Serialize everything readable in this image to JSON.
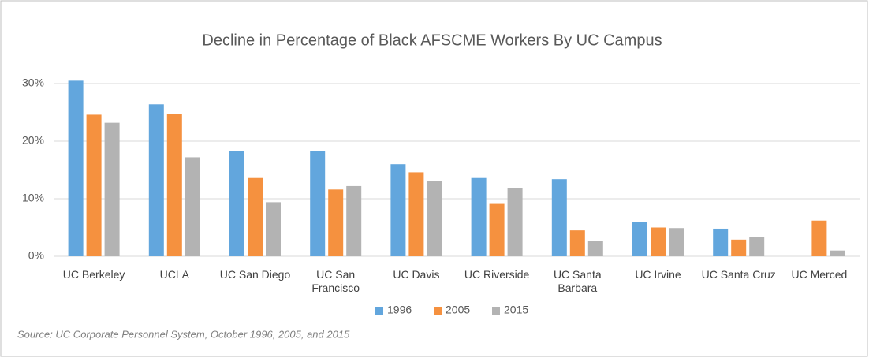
{
  "chart_data": {
    "type": "bar",
    "title": "Decline in Percentage of Black AFSCME Workers By UC Campus",
    "categories": [
      "UC Berkeley",
      "UCLA",
      "UC San Diego",
      "UC San Francisco",
      "UC Davis",
      "UC Riverside",
      "UC Santa Barbara",
      "UC Irvine",
      "UC Santa Cruz",
      "UC Merced"
    ],
    "series": [
      {
        "name": "1996",
        "color": "#62a6dd",
        "values": [
          30.5,
          26.4,
          18.3,
          18.3,
          16.0,
          13.6,
          13.4,
          6.0,
          4.8,
          null
        ]
      },
      {
        "name": "2005",
        "color": "#f5913f",
        "values": [
          24.6,
          24.7,
          13.6,
          11.6,
          14.6,
          9.1,
          4.5,
          5.0,
          2.9,
          6.2
        ]
      },
      {
        "name": "2015",
        "color": "#b3b3b3",
        "values": [
          23.2,
          17.2,
          9.4,
          12.2,
          13.1,
          11.9,
          2.7,
          4.9,
          3.4,
          1.0
        ]
      }
    ],
    "ylim": [
      0,
      30
    ],
    "yticks": [
      {
        "value": 0,
        "label": "0%"
      },
      {
        "value": 10,
        "label": "10%"
      },
      {
        "value": 20,
        "label": "20%"
      },
      {
        "value": 30,
        "label": "30%"
      }
    ],
    "grid": true,
    "legend": "bottom",
    "source": "Source: UC Corporate Personnel System, October 1996, 2005, and 2015"
  }
}
